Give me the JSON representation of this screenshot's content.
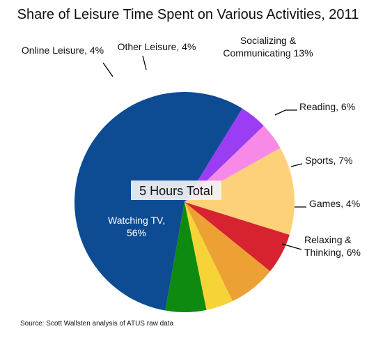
{
  "chart_data": {
    "type": "pie",
    "title": "Share of Leisure Time Spent on Various Activities, 2011",
    "center_label": "5 Hours Total",
    "slices": [
      {
        "label": "Socializing &\nCommunicating 13%",
        "value": 13,
        "color": "#fdd17a"
      },
      {
        "label": "Reading, 6%",
        "value": 6,
        "color": "#d7232f"
      },
      {
        "label": "Sports, 7%",
        "value": 7,
        "color": "#eda033"
      },
      {
        "label": "Games, 4%",
        "value": 4,
        "color": "#f6d438"
      },
      {
        "label": "Relaxing &\nThinking, 6%",
        "value": 6,
        "color": "#0e8a10"
      },
      {
        "label": "Watching TV,\n56%",
        "value": 56,
        "color": "#0d4c93"
      },
      {
        "label": "Online Leisure, 4%",
        "value": 4,
        "color": "#9b3df2"
      },
      {
        "label": "Other Leisure, 4%",
        "value": 4,
        "color": "#f78ae7"
      }
    ],
    "source": "Source:  Scott Wallsten analysis of ATUS raw data"
  }
}
